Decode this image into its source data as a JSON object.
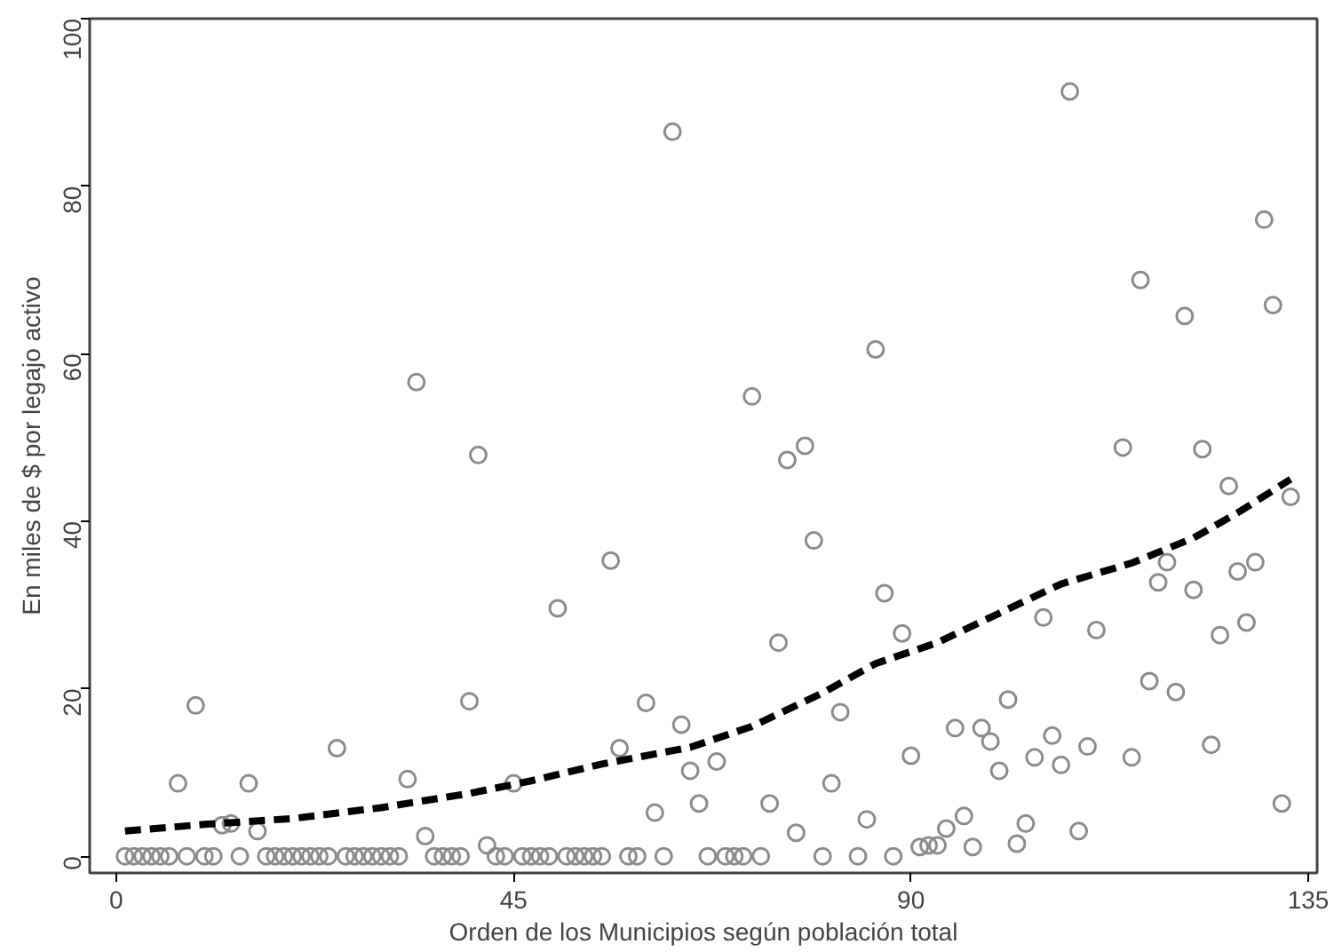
{
  "chart_data": {
    "type": "scatter",
    "xlabel": "Orden de los Municipios según población total",
    "ylabel": "En miles de $ por legajo activo",
    "xlim": [
      -3,
      136
    ],
    "ylim": [
      -2,
      100
    ],
    "xticks": [
      0,
      45,
      90,
      135
    ],
    "yticks": [
      0,
      20,
      40,
      60,
      80,
      100
    ],
    "grid": false,
    "series": [
      {
        "color": "#8c8c8c",
        "marker": "circle",
        "x": [
          1,
          2,
          3,
          4,
          5,
          6,
          7,
          8,
          9,
          10,
          11,
          12,
          13,
          14,
          15,
          16,
          17,
          18,
          19,
          20,
          21,
          22,
          23,
          24,
          25,
          26,
          27,
          28,
          29,
          30,
          31,
          32,
          33,
          34,
          35,
          36,
          37,
          38,
          39,
          40,
          41,
          42,
          43,
          44,
          45,
          46,
          47,
          48,
          49,
          50,
          51,
          52,
          53,
          54,
          55,
          56,
          57,
          58,
          59,
          60,
          61,
          62,
          63,
          64,
          65,
          66,
          67,
          68,
          69,
          70,
          71,
          72,
          73,
          74,
          75,
          76,
          77,
          78,
          79,
          80,
          81,
          82,
          84,
          85,
          86,
          87,
          88,
          89,
          90,
          91,
          92,
          93,
          94,
          95,
          96,
          97,
          98,
          99,
          100,
          101,
          102,
          103,
          104,
          105,
          106,
          107,
          108,
          109,
          110,
          111,
          114,
          115,
          116,
          117,
          118,
          119,
          120,
          121,
          122,
          123,
          124,
          125,
          126,
          127,
          128,
          129,
          130,
          131,
          132,
          133
        ],
        "values": [
          0,
          0,
          0,
          0,
          0,
          0,
          8.7,
          0,
          18,
          0,
          0,
          3.7,
          3.9,
          0,
          8.7,
          3,
          0,
          0,
          0,
          0,
          0,
          0,
          0,
          0,
          12.9,
          0,
          0,
          0,
          0,
          0,
          0,
          0,
          9.2,
          56.6,
          2.4,
          0,
          0,
          0,
          0,
          18.5,
          47.9,
          1.3,
          0,
          0,
          8.7,
          0,
          0,
          0,
          0,
          29.6,
          0,
          0,
          0,
          0,
          0,
          35.3,
          12.9,
          0,
          0,
          18.3,
          5.2,
          0,
          86.5,
          15.7,
          10.2,
          6.3,
          0,
          11.3,
          0,
          0,
          0,
          54.9,
          0,
          6.3,
          25.5,
          47.3,
          2.8,
          49,
          37.7,
          0,
          8.7,
          17.2,
          0,
          4.4,
          60.5,
          31.4,
          0,
          26.6,
          12,
          1.1,
          1.3,
          1.3,
          3.3,
          15.3,
          4.8,
          1.1,
          15.3,
          13.7,
          10.2,
          18.7,
          1.5,
          3.9,
          11.8,
          28.5,
          14.4,
          10.9,
          91.3,
          3,
          13.1,
          27,
          48.8,
          11.8,
          68.8,
          20.9,
          32.7,
          35.1,
          19.6,
          64.5,
          31.8,
          48.6,
          13.3,
          26.4,
          44.2,
          34,
          27.9,
          35.1,
          76,
          65.8,
          6.3,
          42.9
        ]
      },
      {
        "type": "line",
        "color": "#000000",
        "line_style": "dashed",
        "marker": "none",
        "x": [
          1,
          10,
          20,
          30,
          40,
          47,
          55,
          65,
          72,
          80,
          86,
          93,
          100,
          107,
          115,
          122,
          127,
          133
        ],
        "values": [
          3,
          3.8,
          4.5,
          5.8,
          7.5,
          9,
          11,
          13,
          15.5,
          19.5,
          23,
          25.5,
          29,
          32.5,
          35,
          38,
          41,
          45
        ]
      }
    ]
  }
}
